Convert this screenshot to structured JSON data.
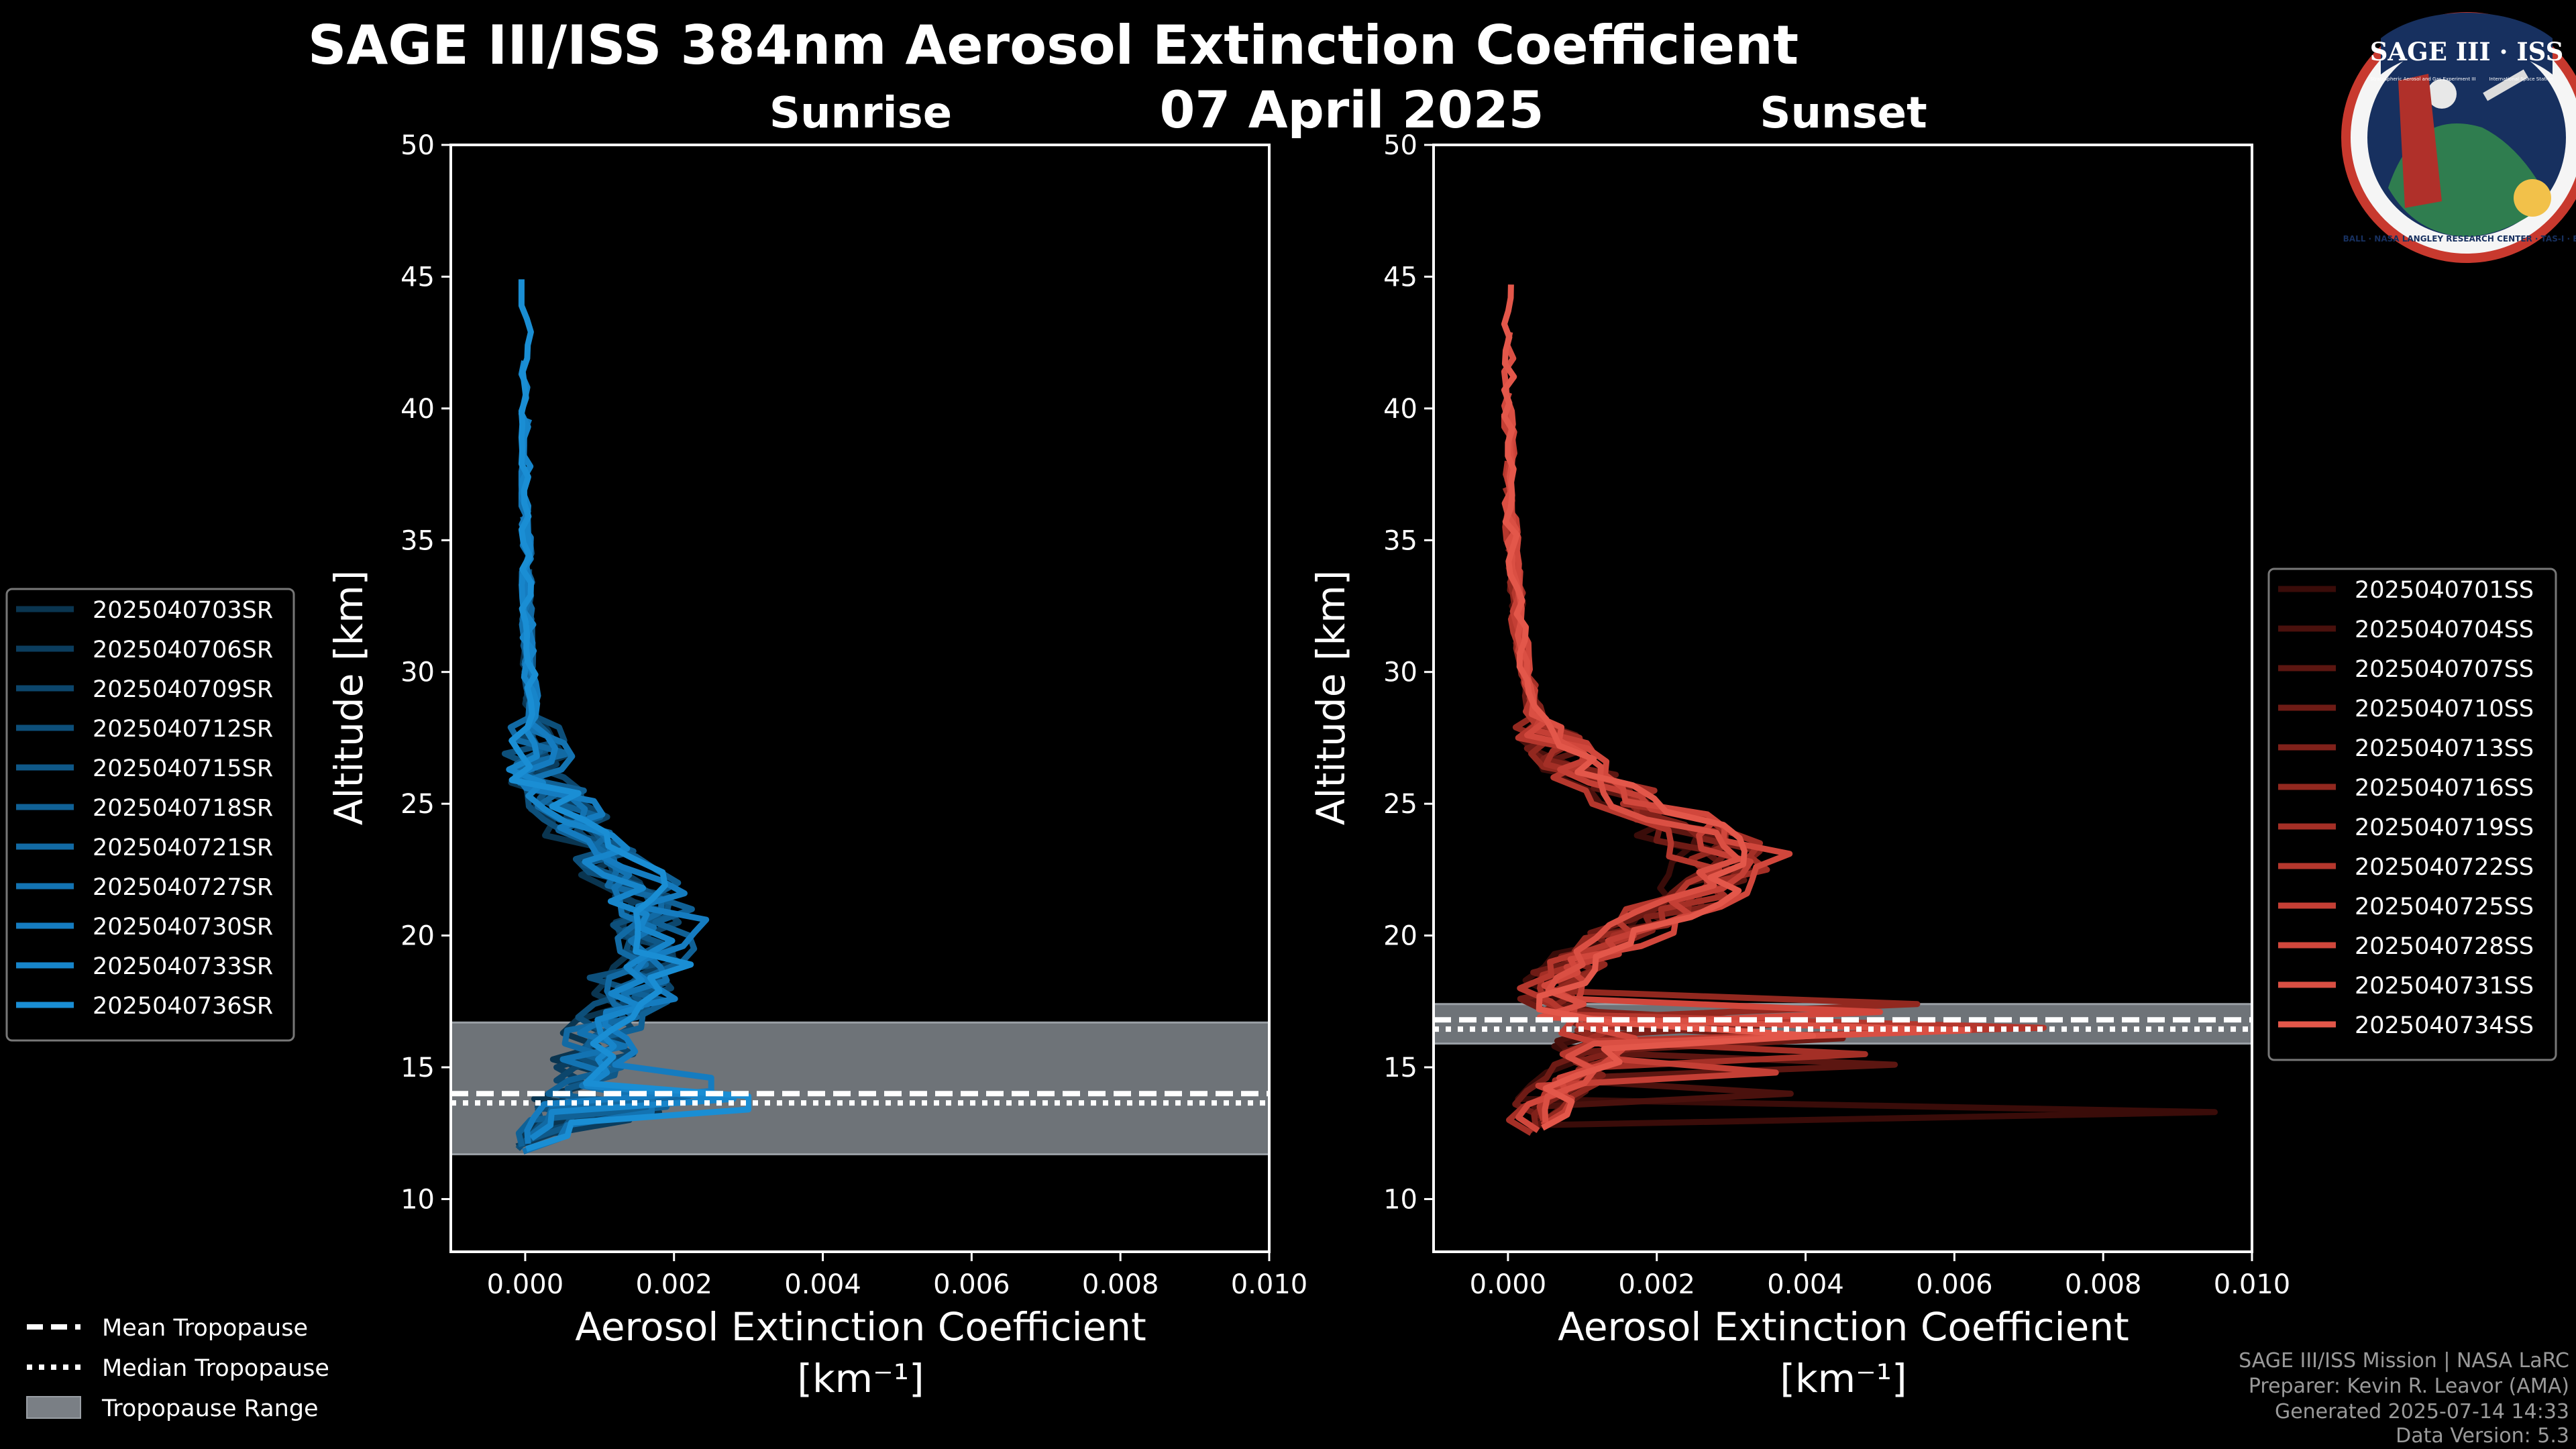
{
  "title_line1": "SAGE III/ISS 384nm Aerosol Extinction Coefficient",
  "title_date": "07 April 2025",
  "colors": {
    "sunrise": "#1f8fd6",
    "sunset": "#e0574a",
    "range": "#7a7f85",
    "background": "#000000"
  },
  "logo": {
    "title": "SAGE III · ISS",
    "subtitle_left": "Stratospheric Aerosol and Gas Experiment III",
    "subtitle_right": "International Space Station",
    "ring_text": "BALL · NASA LANGLEY RESEARCH CENTER · TAS-I · ESA"
  },
  "footer": {
    "line1": "SAGE III/ISS Mission | NASA LaRC",
    "line2": "Preparer: Kevin R. Leavor (AMA)",
    "line3": "Generated 2025-07-14 14:33",
    "line4": "Data Version: 5.3"
  },
  "common_legend": {
    "mean": "Mean Tropopause",
    "median": "Median Tropopause",
    "range": "Tropopause Range"
  },
  "chart_data": [
    {
      "type": "line",
      "panel": "sunrise",
      "title": "Sunrise",
      "xlabel": "Aerosol Extinction Coefficient",
      "xunit": "[km⁻¹]",
      "ylabel": "Altitude [km]",
      "xlim": [
        -0.001,
        0.01
      ],
      "ylim": [
        8,
        50
      ],
      "xticks": [
        "0.000",
        "0.002",
        "0.004",
        "0.006",
        "0.008",
        "0.010"
      ],
      "yticks": [
        "10",
        "15",
        "20",
        "25",
        "30",
        "35",
        "40",
        "45",
        "50"
      ],
      "tropopause": {
        "mean": 13.9,
        "median": 13.8,
        "range": [
          11.7,
          16.7
        ]
      },
      "base_profile": [
        [
          12,
          0.0001
        ],
        [
          13,
          0.0004
        ],
        [
          14,
          0.0006
        ],
        [
          15,
          0.0008
        ],
        [
          16,
          0.0009
        ],
        [
          17,
          0.0011
        ],
        [
          18,
          0.0013
        ],
        [
          19,
          0.0015
        ],
        [
          20,
          0.0016
        ],
        [
          21,
          0.0015
        ],
        [
          22,
          0.0013
        ],
        [
          23,
          0.001
        ],
        [
          24,
          0.0007
        ],
        [
          25,
          0.0004
        ],
        [
          26,
          0.0002
        ],
        [
          28,
          0.0001
        ],
        [
          30,
          5e-05
        ],
        [
          35,
          0.0
        ],
        [
          40,
          0.0
        ],
        [
          45,
          0.0
        ]
      ],
      "series": [
        {
          "name": "2025040703SR",
          "color": "#0a3550",
          "scale": 0.9,
          "top": 32,
          "bottom": 12.3,
          "spike_alt": 13.5,
          "spike_val": 0.0018
        },
        {
          "name": "2025040706SR",
          "color": "#0b3d5e",
          "scale": 1.05,
          "top": 33,
          "bottom": 12.0,
          "spike_alt": 13.0,
          "spike_val": 0.0014
        },
        {
          "name": "2025040709SR",
          "color": "#0c466c",
          "scale": 1.2,
          "top": 33,
          "bottom": 12.5,
          "spike_alt": 14.2,
          "spike_val": 0.0021
        },
        {
          "name": "2025040712SR",
          "color": "#0d4f7a",
          "scale": 0.95,
          "top": 34,
          "bottom": 11.9,
          "spike_alt": 13.8,
          "spike_val": 0.0016
        },
        {
          "name": "2025040715SR",
          "color": "#0f5888",
          "scale": 1.1,
          "top": 34,
          "bottom": 12.2,
          "spike_alt": 14.5,
          "spike_val": 0.0012
        },
        {
          "name": "2025040718SR",
          "color": "#106196",
          "scale": 1.25,
          "top": 35,
          "bottom": 12.0,
          "spike_alt": 13.3,
          "spike_val": 0.0019
        },
        {
          "name": "2025040721SR",
          "color": "#126aa4",
          "scale": 1.0,
          "top": 36,
          "bottom": 12.4,
          "spike_alt": 14.0,
          "spike_val": 0.0022
        },
        {
          "name": "2025040727SR",
          "color": "#1373b2",
          "scale": 1.15,
          "top": 38,
          "bottom": 11.8,
          "spike_alt": 13.6,
          "spike_val": 0.0017
        },
        {
          "name": "2025040730SR",
          "color": "#157cc0",
          "scale": 1.3,
          "top": 40,
          "bottom": 12.1,
          "spike_alt": 14.3,
          "spike_val": 0.0025
        },
        {
          "name": "2025040733SR",
          "color": "#1785ca",
          "scale": 1.05,
          "top": 42,
          "bottom": 12.3,
          "spike_alt": 13.9,
          "spike_val": 0.0028
        },
        {
          "name": "2025040736SR",
          "color": "#1a8ed4",
          "scale": 1.2,
          "top": 45,
          "bottom": 11.9,
          "spike_alt": 13.7,
          "spike_val": 0.003
        }
      ]
    },
    {
      "type": "line",
      "panel": "sunset",
      "title": "Sunset",
      "xlabel": "Aerosol Extinction Coefficient",
      "xunit": "[km⁻¹]",
      "ylabel": "Altitude [km]",
      "xlim": [
        -0.001,
        0.01
      ],
      "ylim": [
        8,
        50
      ],
      "xticks": [
        "0.000",
        "0.002",
        "0.004",
        "0.006",
        "0.008",
        "0.010"
      ],
      "yticks": [
        "10",
        "15",
        "20",
        "25",
        "30",
        "35",
        "40",
        "45",
        "50"
      ],
      "tropopause": {
        "mean": 16.7,
        "median": 16.6,
        "range": [
          15.9,
          17.4
        ]
      },
      "base_profile": [
        [
          12.5,
          0.0001
        ],
        [
          13.5,
          0.0005
        ],
        [
          14.5,
          0.0008
        ],
        [
          15.5,
          0.0011
        ],
        [
          16.5,
          0.001
        ],
        [
          17.5,
          0.0006
        ],
        [
          18.5,
          0.0007
        ],
        [
          19.5,
          0.0011
        ],
        [
          20.5,
          0.0017
        ],
        [
          21.5,
          0.0024
        ],
        [
          22.5,
          0.0028
        ],
        [
          23.5,
          0.0026
        ],
        [
          24.5,
          0.002
        ],
        [
          25.5,
          0.0013
        ],
        [
          26.5,
          0.0008
        ],
        [
          28,
          0.0004
        ],
        [
          30,
          0.0002
        ],
        [
          33,
          0.0001
        ],
        [
          36,
          3e-05
        ],
        [
          40,
          0.0
        ],
        [
          45,
          0.0
        ]
      ],
      "series": [
        {
          "name": "2025040701SS",
          "color": "#3a0c09",
          "scale": 0.9,
          "top": 33,
          "bottom": 12.8,
          "spike_alt": 13.5,
          "spike_val": 0.0095
        },
        {
          "name": "2025040704SS",
          "color": "#4a110d",
          "scale": 1.0,
          "top": 34,
          "bottom": 13.0,
          "spike_alt": 14.2,
          "spike_val": 0.0038
        },
        {
          "name": "2025040707SS",
          "color": "#5c1611",
          "scale": 1.1,
          "top": 34,
          "bottom": 12.6,
          "spike_alt": 15.0,
          "spike_val": 0.0052
        },
        {
          "name": "2025040710SS",
          "color": "#6e1b15",
          "scale": 0.95,
          "top": 35,
          "bottom": 13.1,
          "spike_alt": 16.0,
          "spike_val": 0.0045
        },
        {
          "name": "2025040713SS",
          "color": "#80211a",
          "scale": 1.15,
          "top": 35,
          "bottom": 12.7,
          "spike_alt": 16.8,
          "spike_val": 0.004
        },
        {
          "name": "2025040716SS",
          "color": "#92281f",
          "scale": 1.05,
          "top": 36,
          "bottom": 12.9,
          "spike_alt": 17.3,
          "spike_val": 0.0055
        },
        {
          "name": "2025040719SS",
          "color": "#a42f26",
          "scale": 1.2,
          "top": 37,
          "bottom": 12.5,
          "spike_alt": 15.5,
          "spike_val": 0.0048
        },
        {
          "name": "2025040722SS",
          "color": "#b5372d",
          "scale": 0.9,
          "top": 38,
          "bottom": 13.0,
          "spike_alt": 16.3,
          "spike_val": 0.0072
        },
        {
          "name": "2025040725SS",
          "color": "#c43f35",
          "scale": 1.1,
          "top": 40,
          "bottom": 12.8,
          "spike_alt": 14.8,
          "spike_val": 0.0036
        },
        {
          "name": "2025040728SS",
          "color": "#d1473c",
          "scale": 1.25,
          "top": 41,
          "bottom": 12.6,
          "spike_alt": 17.0,
          "spike_val": 0.005
        },
        {
          "name": "2025040731SS",
          "color": "#da4f43",
          "scale": 1.0,
          "top": 43,
          "bottom": 12.9,
          "spike_alt": 16.5,
          "spike_val": 0.0062
        },
        {
          "name": "2025040734SS",
          "color": "#e3574a",
          "scale": 1.15,
          "top": 45,
          "bottom": 12.7,
          "spike_alt": 16.1,
          "spike_val": 0.0041
        }
      ]
    }
  ]
}
